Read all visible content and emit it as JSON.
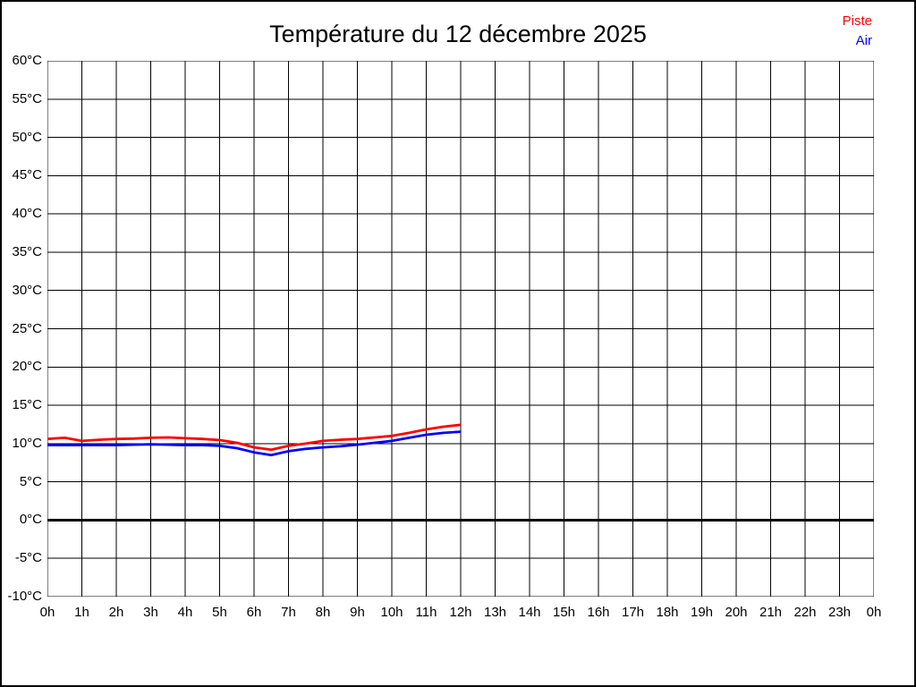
{
  "title": "Température du 12 décembre 2025",
  "colors": {
    "background": "#ffffff",
    "grid": "#000000",
    "axis_text": "#000000",
    "zero_line": "#000000",
    "piste": "#ff0000",
    "air": "#0000ff"
  },
  "chart_data": {
    "type": "line",
    "title": "Température du 12 décembre 2025",
    "xlabel": "",
    "ylabel": "",
    "x_unit": "h",
    "y_unit": "°C",
    "xlim": [
      0,
      24
    ],
    "ylim": [
      -10,
      60
    ],
    "y_tick_step": 5,
    "grid": true,
    "zero_line_bold": true,
    "legend_position": "top-right",
    "x_tick_labels": [
      "0h",
      "1h",
      "2h",
      "3h",
      "4h",
      "5h",
      "6h",
      "7h",
      "8h",
      "9h",
      "10h",
      "11h",
      "12h",
      "13h",
      "14h",
      "15h",
      "16h",
      "17h",
      "18h",
      "19h",
      "20h",
      "21h",
      "22h",
      "23h",
      "0h"
    ],
    "y_tick_labels": [
      "60°C",
      "55°C",
      "50°C",
      "45°C",
      "40°C",
      "35°C",
      "30°C",
      "25°C",
      "20°C",
      "15°C",
      "10°C",
      "5°C",
      "0°C",
      "-5°C",
      "-10°C"
    ],
    "x": [
      0,
      0.5,
      1,
      1.5,
      2,
      2.5,
      3,
      3.5,
      4,
      4.5,
      5,
      5.5,
      6,
      6.5,
      7,
      7.5,
      8,
      8.5,
      9,
      9.5,
      10,
      10.5,
      11,
      11.5,
      12
    ],
    "series": [
      {
        "name": "Piste",
        "color": "#ff0000",
        "values": [
          10.6,
          10.75,
          10.35,
          10.5,
          10.6,
          10.65,
          10.75,
          10.8,
          10.7,
          10.6,
          10.45,
          10.1,
          9.5,
          9.2,
          9.7,
          10.0,
          10.35,
          10.5,
          10.6,
          10.8,
          11.0,
          11.4,
          11.85,
          12.2,
          12.45
        ]
      },
      {
        "name": "Air",
        "color": "#0000ff",
        "values": [
          9.8,
          9.8,
          9.8,
          9.8,
          9.8,
          9.85,
          9.9,
          9.85,
          9.8,
          9.8,
          9.7,
          9.4,
          8.85,
          8.5,
          9.0,
          9.3,
          9.5,
          9.65,
          9.85,
          10.1,
          10.35,
          10.75,
          11.15,
          11.4,
          11.55
        ]
      }
    ]
  }
}
